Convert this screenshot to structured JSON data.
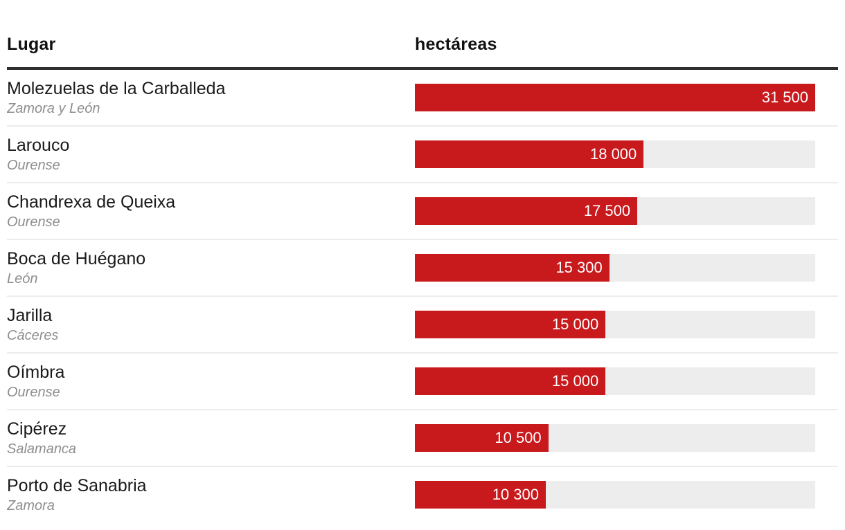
{
  "table": {
    "col_place": "Lugar",
    "col_value": "hectáreas"
  },
  "chart_data": {
    "type": "bar",
    "orientation": "horizontal",
    "title": "",
    "category_axis_label": "Lugar",
    "value_axis_label": "hectáreas",
    "value_range": [
      0,
      31500
    ],
    "max_value": 31500,
    "grid": false,
    "legend": false,
    "rows": [
      {
        "place": "Molezuelas de la Carballeda",
        "province": "Zamora y León",
        "value": 31500,
        "value_label": "31 500"
      },
      {
        "place": "Larouco",
        "province": "Ourense",
        "value": 18000,
        "value_label": "18 000"
      },
      {
        "place": "Chandrexa de Queixa",
        "province": "Ourense",
        "value": 17500,
        "value_label": "17 500"
      },
      {
        "place": "Boca de Huégano",
        "province": "León",
        "value": 15300,
        "value_label": "15 300"
      },
      {
        "place": "Jarilla",
        "province": "Cáceres",
        "value": 15000,
        "value_label": "15 000"
      },
      {
        "place": "Oímbra",
        "province": "Ourense",
        "value": 15000,
        "value_label": "15 000"
      },
      {
        "place": "Cipérez",
        "province": "Salamanca",
        "value": 10500,
        "value_label": "10 500"
      },
      {
        "place": "Porto de Sanabria",
        "province": "Zamora",
        "value": 10300,
        "value_label": "10 300"
      }
    ],
    "colors": {
      "bar": "#c8191d",
      "track": "#ededed",
      "header_rule": "#2e2e2e",
      "row_separator": "#ececec",
      "place_text": "#1a1a1a",
      "province_text": "#8e8e8e",
      "value_text": "#ffffff"
    }
  }
}
